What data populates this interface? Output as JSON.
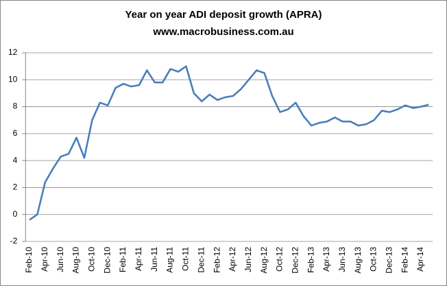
{
  "chart_data": {
    "type": "line",
    "title": "Year on year ADI deposit growth (APRA)",
    "subtitle": "www.macrobusiness.com.au",
    "categories": [
      "Feb-10",
      null,
      "Apr-10",
      null,
      "Jun-10",
      null,
      "Aug-10",
      null,
      "Oct-10",
      null,
      "Dec-10",
      null,
      "Feb-11",
      null,
      "Apr-11",
      null,
      "Jun-11",
      null,
      "Aug-11",
      null,
      "Oct-11",
      null,
      "Dec-11",
      null,
      "Feb-12",
      null,
      "Apr-12",
      null,
      "Jun-12",
      null,
      "Aug-12",
      null,
      "Oct-12",
      null,
      "Dec-12",
      null,
      "Feb-13",
      null,
      "Apr-13",
      null,
      "Jun-13",
      null,
      "Aug-13",
      null,
      "Oct-13",
      null,
      "Dec-13",
      null,
      "Feb-14",
      null,
      "Apr-14",
      null
    ],
    "series": [
      {
        "name": "Deposit growth",
        "color": "#4a7ebb",
        "values": [
          -0.4,
          0.0,
          2.4,
          3.4,
          4.3,
          4.5,
          5.7,
          4.2,
          7.0,
          8.3,
          8.1,
          9.4,
          9.7,
          9.5,
          9.6,
          10.7,
          9.8,
          9.8,
          10.8,
          10.6,
          11.0,
          9.0,
          8.4,
          8.9,
          8.5,
          8.7,
          8.8,
          9.3,
          10.0,
          10.7,
          10.5,
          8.8,
          7.6,
          7.8,
          8.3,
          7.3,
          6.6,
          6.8,
          6.9,
          7.2,
          6.9,
          6.9,
          6.6,
          6.7,
          7.0,
          7.7,
          7.6,
          7.8,
          8.1,
          7.9,
          8.0,
          8.15
        ]
      }
    ],
    "ylim": [
      -2,
      12
    ],
    "yticks": [
      -2,
      0,
      2,
      4,
      6,
      8,
      10,
      12
    ],
    "grid": true
  }
}
